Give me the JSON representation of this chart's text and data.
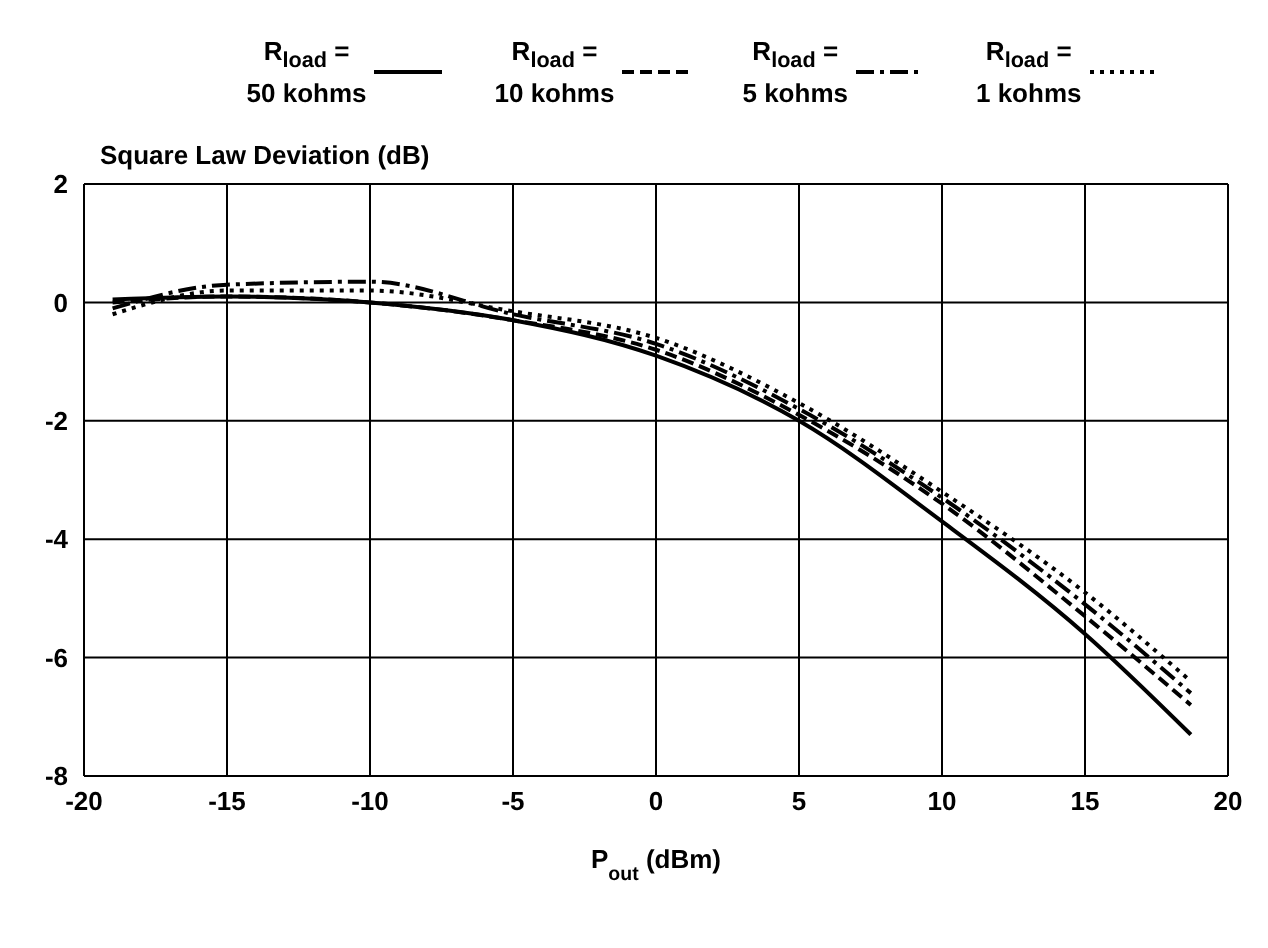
{
  "chart_data": {
    "type": "line",
    "title": "Square Law Deviation (dB)",
    "xlabel": "P$_{out}$ (dBm)",
    "x": [
      -19,
      -15,
      -10,
      -5,
      0,
      5,
      10,
      15,
      18.7
    ],
    "series": [
      {
        "name": "R$_{load}$ =\n50 kohms",
        "color": "#000000",
        "line_style": "solid",
        "values": [
          0.05,
          0.1,
          0.0,
          -0.3,
          -0.9,
          -2.0,
          -3.7,
          -5.6,
          -7.3
        ]
      },
      {
        "name": "R$_{load}$ =\n10 kohms",
        "color": "#000000",
        "line_style": "dashed",
        "values": [
          0.0,
          0.1,
          0.0,
          -0.3,
          -0.8,
          -1.9,
          -3.4,
          -5.3,
          -6.8
        ]
      },
      {
        "name": "R$_{load}$ =\n5 kohms",
        "color": "#000000",
        "line_style": "dashdot",
        "values": [
          -0.1,
          0.3,
          0.35,
          -0.2,
          -0.7,
          -1.8,
          -3.3,
          -5.1,
          -6.6
        ]
      },
      {
        "name": "R$_{load}$ =\n1 kohms",
        "color": "#000000",
        "line_style": "dotted",
        "values": [
          -0.2,
          0.2,
          0.2,
          -0.15,
          -0.6,
          -1.7,
          -3.2,
          -4.9,
          -6.4
        ]
      }
    ],
    "xlim": [
      -20,
      20
    ],
    "xticks": [
      -20,
      -15,
      -10,
      -5,
      0,
      5,
      10,
      15,
      20
    ],
    "ylim": [
      -8,
      2
    ],
    "yticks": [
      -8,
      -6,
      -4,
      -2,
      0,
      2
    ],
    "grid": true,
    "legend": "top",
    "marker": "none"
  }
}
